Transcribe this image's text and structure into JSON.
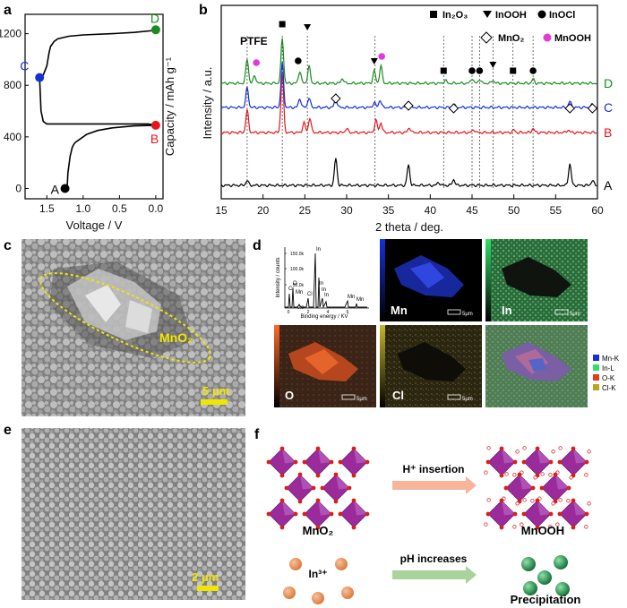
{
  "panels": {
    "a": "a",
    "b": "b",
    "c": "c",
    "d": "d",
    "e": "e",
    "f": "f"
  },
  "colors": {
    "A": "#000000",
    "B": "#e8151b",
    "C": "#1431d8",
    "D": "#198c1e",
    "purple": "#9b2a9b",
    "scale_bar": "#f2e600"
  },
  "chart_data": [
    {
      "type": "line",
      "panel": "a",
      "xlabel": "Voltage / V",
      "ylabel": "Capacity / mAh g⁻¹",
      "xlim": [
        1.8,
        -0.1
      ],
      "ylim": [
        -80,
        1350
      ],
      "xticks": [
        "1.5",
        "1.0",
        "0.5",
        "0.0"
      ],
      "xtick_values": [
        1.5,
        1.0,
        0.5,
        0.0
      ],
      "yticks": [
        "0",
        "400",
        "800",
        "1200"
      ],
      "ytick_values": [
        0,
        400,
        800,
        1200
      ],
      "x": [
        1.25,
        1.22,
        1.21,
        1.18,
        1.15,
        1.12,
        1.1,
        1.05,
        0.95,
        0.8,
        0.6,
        0.3,
        0.0,
        0.1,
        1.5,
        1.55,
        1.58,
        1.6,
        1.55,
        1.5,
        1.47,
        1.45,
        1.4,
        1.35,
        1.2,
        1.0,
        0.6,
        0.3,
        0.02
      ],
      "y": [
        0,
        10,
        120,
        250,
        320,
        350,
        360,
        380,
        420,
        450,
        470,
        485,
        490,
        500,
        500,
        520,
        600,
        860,
        880,
        950,
        1050,
        1100,
        1140,
        1160,
        1180,
        1190,
        1200,
        1210,
        1225
      ],
      "points": [
        {
          "label": "A",
          "x": 1.25,
          "y": 0,
          "color": "#000000"
        },
        {
          "label": "B",
          "x": 0.0,
          "y": 490,
          "color": "#e8151b"
        },
        {
          "label": "C",
          "x": 1.6,
          "y": 860,
          "color": "#1431d8"
        },
        {
          "label": "D",
          "x": 0.0,
          "y": 1230,
          "color": "#198c1e"
        }
      ]
    },
    {
      "type": "line",
      "panel": "b",
      "xlabel": "2 theta / deg.",
      "ylabel": "Intensity / a.u.",
      "xlim": [
        15,
        60
      ],
      "xticks": [
        "15",
        "20",
        "25",
        "30",
        "35",
        "40",
        "45",
        "50",
        "55",
        "60"
      ],
      "xtick_values": [
        15,
        20,
        25,
        30,
        35,
        40,
        45,
        50,
        55,
        60
      ],
      "legend": {
        "In2O3": "In₂O₃",
        "InOOH": "InOOH",
        "InOCl": "InOCl",
        "MnO2": "MnO₂",
        "MnOOH": "MnOOH"
      },
      "annotation": "PTFE",
      "series": [
        {
          "name": "A",
          "color": "#000000",
          "offset": 0,
          "peaks": [
            [
              18.1,
              10
            ],
            [
              28.7,
              55
            ],
            [
              37.4,
              42
            ],
            [
              41.0,
              6
            ],
            [
              42.8,
              12
            ],
            [
              56.7,
              44
            ],
            [
              59.4,
              10
            ]
          ]
        },
        {
          "name": "B",
          "color": "#e8151b",
          "offset": 1,
          "peaks": [
            [
              18.1,
              45
            ],
            [
              22.3,
              120
            ],
            [
              24.9,
              20
            ],
            [
              25.6,
              30
            ],
            [
              30.0,
              8
            ],
            [
              33.5,
              25
            ],
            [
              34.1,
              20
            ],
            [
              37.5,
              10
            ],
            [
              45.2,
              6
            ],
            [
              50.0,
              5
            ],
            [
              52.3,
              8
            ],
            [
              56.5,
              5
            ]
          ]
        },
        {
          "name": "C",
          "color": "#1431d8",
          "offset": 2,
          "peaks": [
            [
              18.1,
              40
            ],
            [
              22.3,
              90
            ],
            [
              24.4,
              18
            ],
            [
              25.5,
              20
            ],
            [
              28.7,
              18
            ],
            [
              33.3,
              10
            ],
            [
              34.0,
              15
            ],
            [
              37.4,
              14
            ],
            [
              42.8,
              6
            ],
            [
              56.7,
              12
            ],
            [
              59.4,
              6
            ]
          ]
        },
        {
          "name": "D",
          "color": "#198c1e",
          "offset": 3,
          "peaks": [
            [
              18.1,
              50
            ],
            [
              19.0,
              16
            ],
            [
              22.3,
              90
            ],
            [
              24.4,
              25
            ],
            [
              25.5,
              35
            ],
            [
              29.5,
              10
            ],
            [
              33.3,
              25
            ],
            [
              34.1,
              35
            ],
            [
              41.8,
              6
            ],
            [
              45.0,
              10
            ],
            [
              45.9,
              8
            ],
            [
              47.5,
              6
            ],
            [
              52.3,
              8
            ]
          ]
        }
      ],
      "markers": [
        {
          "kind": "In2O3",
          "x": 22.3,
          "series": "D"
        },
        {
          "kind": "InOOH",
          "x": 25.3,
          "series": "D"
        },
        {
          "kind": "InOCl",
          "x": 24.2,
          "series": "D"
        },
        {
          "kind": "MnOOH",
          "x": 19.2,
          "series": "D"
        },
        {
          "kind": "InOOH",
          "x": 33.3,
          "series": "D"
        },
        {
          "kind": "MnOOH",
          "x": 34.2,
          "series": "D"
        },
        {
          "kind": "In2O3",
          "x": 41.6,
          "series": "D"
        },
        {
          "kind": "InOCl",
          "x": 45.0,
          "series": "D"
        },
        {
          "kind": "InOCl",
          "x": 45.9,
          "series": "D"
        },
        {
          "kind": "InOOH",
          "x": 47.5,
          "series": "D"
        },
        {
          "kind": "In2O3",
          "x": 49.9,
          "series": "D"
        },
        {
          "kind": "InOCl",
          "x": 52.3,
          "series": "D"
        },
        {
          "kind": "MnO2",
          "x": 28.7,
          "series": "C"
        },
        {
          "kind": "MnO2",
          "x": 37.4,
          "series": "C"
        },
        {
          "kind": "MnO2",
          "x": 42.8,
          "series": "C"
        },
        {
          "kind": "MnO2",
          "x": 56.7,
          "series": "C"
        },
        {
          "kind": "MnO2",
          "x": 59.4,
          "series": "C"
        }
      ]
    },
    {
      "type": "line",
      "panel": "d-inset",
      "xlabel": "Binding energy / KV",
      "ylabel": "Intensity / counts",
      "yticks": [
        "150.0k",
        "100.0k",
        "50.0k",
        "0.0"
      ],
      "xticks": [
        "0",
        "2",
        "4",
        "6"
      ],
      "peak_labels": [
        "C",
        "O",
        "Mn",
        "Cl",
        "In",
        "In",
        "In",
        "In",
        "Mn",
        "Mn"
      ]
    }
  ],
  "panel_c": {
    "label": "MnO₂",
    "scale": "5 μm"
  },
  "panel_d": {
    "maps": [
      "Mn",
      "In",
      "O",
      "Cl"
    ],
    "scale": "5μm",
    "legend": [
      "Mn-K",
      "In-L",
      "O-K",
      "Cl-K"
    ],
    "legend_colors": [
      "#1431d8",
      "#2ee06a",
      "#e83a14",
      "#b9a81a"
    ]
  },
  "panel_e": {
    "scale": "2 μm"
  },
  "panel_f": {
    "mno2": "MnO₂",
    "mnooh": "MnOOH",
    "step1": "H⁺ insertion",
    "step2": "pH increases",
    "ion": "In³⁺",
    "precip": "Precipitation"
  }
}
